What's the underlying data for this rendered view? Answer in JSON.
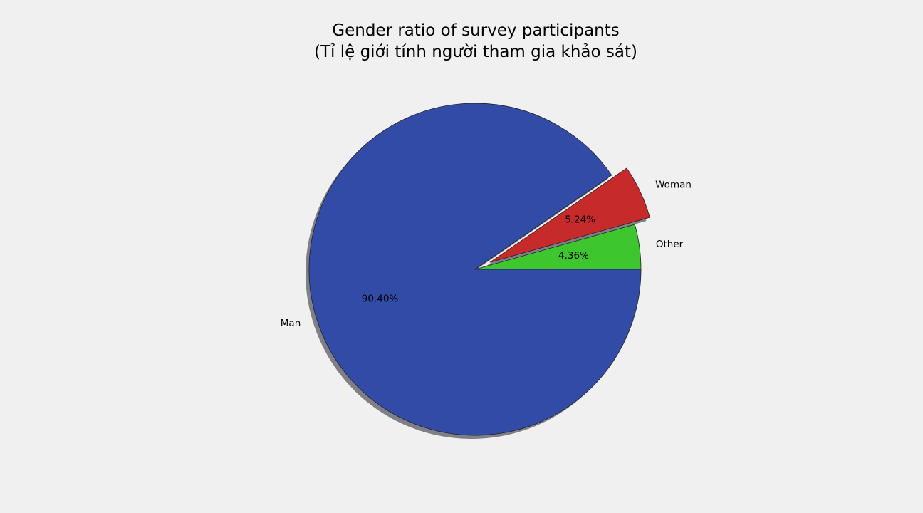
{
  "chart_data": {
    "type": "pie",
    "title": "Gender ratio of survey participants",
    "subtitle": "(Tỉ lệ giới tính người tham gia khảo sát)",
    "start_angle_deg": 0,
    "direction": "counterclockwise",
    "shadow": true,
    "slices": [
      {
        "label": "Other",
        "value": 4.36,
        "value_label": "4.36%",
        "color": "#3dc62e",
        "exploded": false
      },
      {
        "label": "Woman",
        "value": 5.24,
        "value_label": "5.24%",
        "color": "#c62a2a",
        "exploded": true
      },
      {
        "label": "Man",
        "value": 90.4,
        "value_label": "90.40%",
        "color": "#324ba7",
        "exploded": false
      }
    ]
  }
}
